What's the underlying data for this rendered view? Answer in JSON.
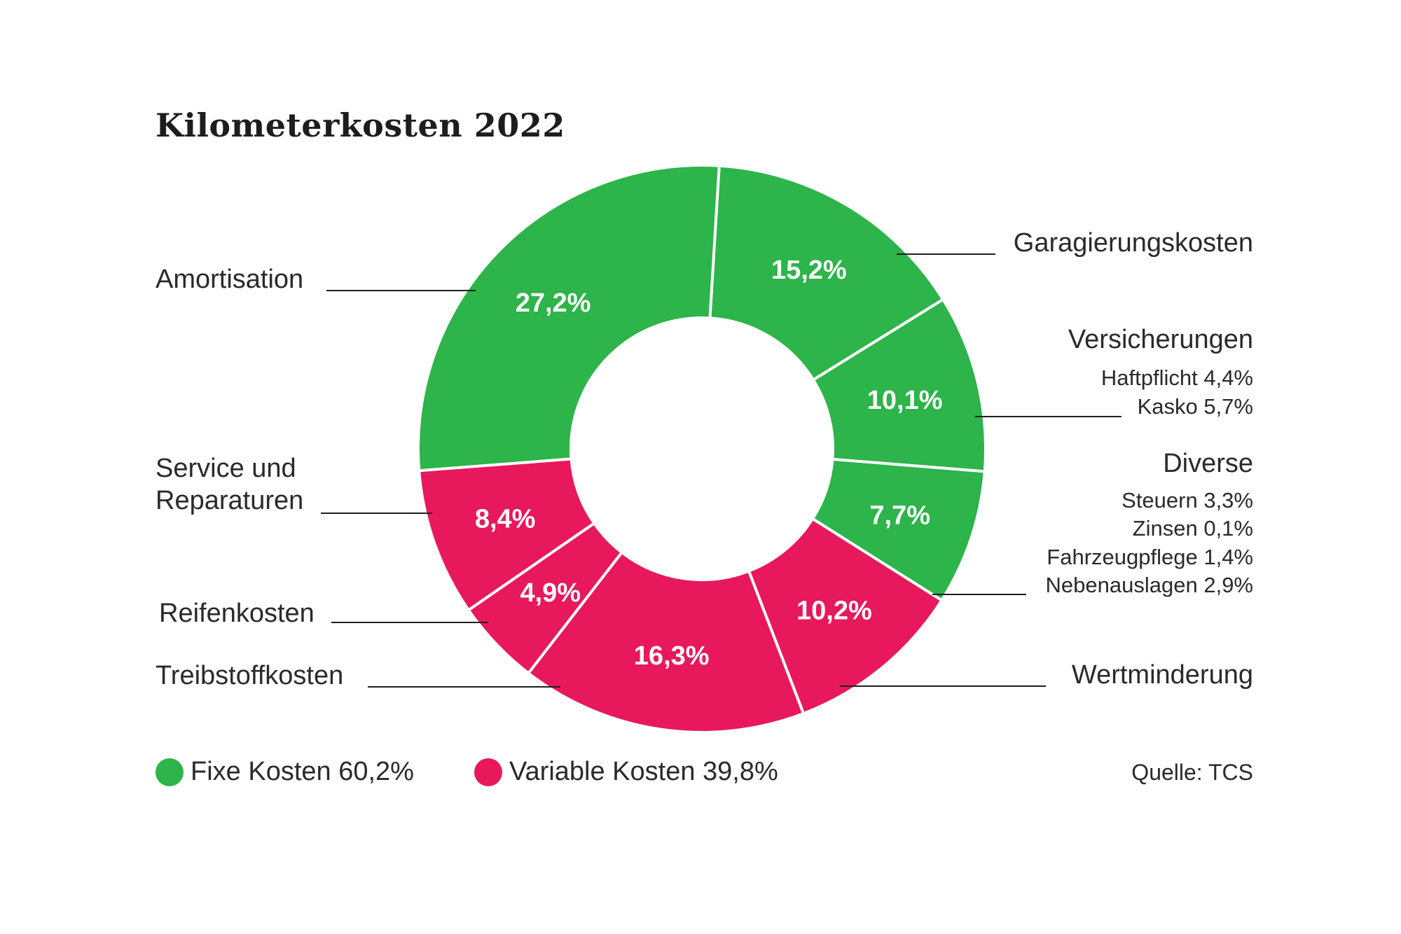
{
  "chart_data": {
    "type": "donut",
    "title": "Kilometerkosten 2022",
    "source": "Quelle: TCS",
    "colors": {
      "fix": "#2db44a",
      "variable": "#e8185d"
    },
    "segments": [
      {
        "name": "Amortisation",
        "value_label": "27,2%",
        "value": 27.2,
        "group": "fix"
      },
      {
        "name": "Garagierungskosten",
        "value_label": "15,2%",
        "value": 15.2,
        "group": "fix"
      },
      {
        "name": "Versicherungen",
        "value_label": "10,1%",
        "value": 10.1,
        "group": "fix",
        "details": [
          "Haftpflicht 4,4%",
          "Kasko 5,7%"
        ]
      },
      {
        "name": "Diverse",
        "value_label": "7,7%",
        "value": 7.7,
        "group": "fix",
        "details": [
          "Steuern 3,3%",
          "Zinsen 0,1%",
          "Fahrzeugpflege 1,4%",
          "Nebenauslagen 2,9%"
        ]
      },
      {
        "name": "Wertminderung",
        "value_label": "10,2%",
        "value": 10.2,
        "group": "variable"
      },
      {
        "name": "Treibstoffkosten",
        "value_label": "16,3%",
        "value": 16.3,
        "group": "variable"
      },
      {
        "name": "Reifenkosten",
        "value_label": "4,9%",
        "value": 4.9,
        "group": "variable"
      },
      {
        "name": "Service und Reparaturen",
        "name_lines": [
          "Service und",
          "Reparaturen"
        ],
        "value_label": "8,4%",
        "value": 8.4,
        "group": "variable"
      }
    ],
    "legend": [
      {
        "label": "Fixe Kosten 60,2%",
        "group": "fix"
      },
      {
        "label": "Variable Kosten 39,8%",
        "group": "variable"
      }
    ]
  }
}
